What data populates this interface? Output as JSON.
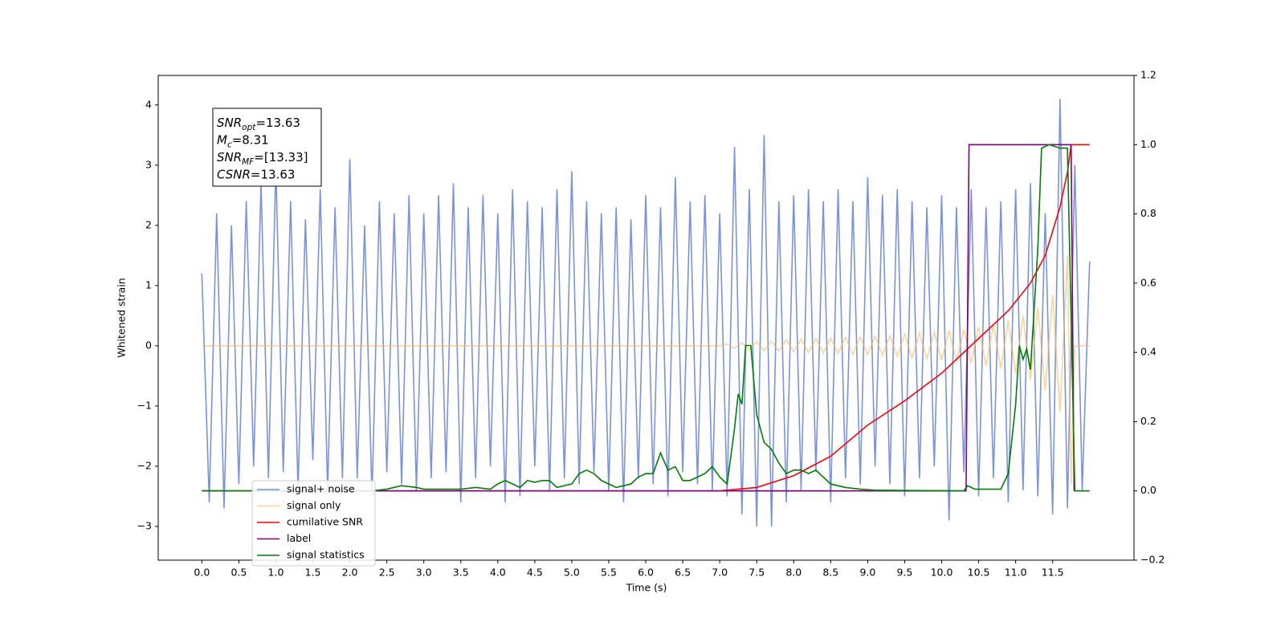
{
  "chart_data": {
    "type": "line",
    "xlabel": "Time (s)",
    "ylabel": "Whitened strain",
    "xlim": [
      -0.59,
      12.6
    ],
    "ylim": [
      -3.56,
      4.49
    ],
    "y2lim": [
      -0.2,
      1.2
    ],
    "xticks": [
      {
        "value": 0,
        "label": "0.0"
      },
      0.5,
      {
        "value": 1,
        "label": "1.0"
      },
      1.5,
      {
        "value": 2,
        "label": "2.0"
      },
      2.5,
      {
        "value": 3,
        "label": "3.0"
      },
      3.5,
      {
        "value": 4,
        "label": "4.0"
      },
      4.5,
      {
        "value": 5,
        "label": "5.0"
      },
      5.5,
      {
        "value": 6,
        "label": "6.0"
      },
      6.5,
      {
        "value": 7,
        "label": "7.0"
      },
      7.5,
      {
        "value": 8,
        "label": "8.0"
      },
      8.5,
      {
        "value": 9,
        "label": "9.0"
      },
      9.5,
      {
        "value": 10,
        "label": "10.0"
      },
      10.5,
      {
        "value": 11,
        "label": "11.0"
      },
      11.5
    ],
    "yticks": [
      {
        "value": -3,
        "label": "−3"
      },
      {
        "value": -2,
        "label": "−2"
      },
      {
        "value": -1,
        "label": "−1"
      },
      0,
      1,
      2,
      3,
      4
    ],
    "y2ticks": [
      {
        "value": -0.2,
        "label": "−0.2"
      },
      {
        "value": 0,
        "label": "0.0"
      },
      0.2,
      0.4,
      0.6,
      0.8,
      {
        "value": 1,
        "label": "1.0"
      },
      1.2
    ],
    "annotation": [
      {
        "text": "SNR",
        "sub": "opt",
        "value": "=13.63"
      },
      {
        "text": "M",
        "sub": "c",
        "value": "=8.31"
      },
      {
        "text": "SNR",
        "sub": "MF",
        "value": "=[13.33]"
      },
      {
        "text": "CSNR",
        "value": "=13.63"
      }
    ],
    "series": [
      {
        "name": "signal+ noise",
        "color": "#7893e6",
        "x": [
          0,
          0.1,
          0.2,
          0.3,
          0.4,
          0.5,
          0.6,
          0.7,
          0.8,
          0.9,
          1,
          1.1,
          1.2,
          1.3,
          1.4,
          1.5,
          1.6,
          1.7,
          1.8,
          1.9,
          2,
          2.1,
          2.2,
          2.3,
          2.4,
          2.5,
          2.6,
          2.7,
          2.8,
          2.9,
          3,
          3.1,
          3.2,
          3.3,
          3.4,
          3.5,
          3.6,
          3.7,
          3.8,
          3.9,
          4,
          4.1,
          4.2,
          4.3,
          4.4,
          4.5,
          4.6,
          4.7,
          4.8,
          4.9,
          5,
          5.1,
          5.2,
          5.3,
          5.4,
          5.5,
          5.6,
          5.7,
          5.8,
          5.9,
          6,
          6.1,
          6.2,
          6.3,
          6.4,
          6.5,
          6.6,
          6.7,
          6.8,
          6.9,
          7,
          7.1,
          7.2,
          7.3,
          7.4,
          7.5,
          7.6,
          7.7,
          7.8,
          7.9,
          8,
          8.1,
          8.2,
          8.3,
          8.4,
          8.5,
          8.6,
          8.7,
          8.8,
          8.9,
          9,
          9.1,
          9.2,
          9.3,
          9.4,
          9.5,
          9.6,
          9.7,
          9.8,
          9.9,
          10,
          10.1,
          10.2,
          10.3,
          10.4,
          10.5,
          10.6,
          10.7,
          10.8,
          10.9,
          11,
          11.1,
          11.2,
          11.3,
          11.4,
          11.5,
          11.6,
          11.7,
          11.8,
          11.9,
          12
        ],
        "values": [
          1.2,
          -2.6,
          2.2,
          -2.7,
          2.0,
          -2.3,
          2.4,
          -2.0,
          2.7,
          -2.2,
          3.0,
          -2.1,
          2.4,
          -2.4,
          2.1,
          -1.9,
          2.6,
          -2.4,
          2.3,
          -2.2,
          3.1,
          -2.2,
          2.0,
          -2.5,
          2.4,
          -2.1,
          2.2,
          -2.3,
          2.5,
          -2.4,
          2.2,
          -2.2,
          2.5,
          -2.1,
          2.7,
          -2.6,
          2.3,
          -2.2,
          2.5,
          -2.0,
          2.2,
          -2.6,
          2.6,
          -2.5,
          2.4,
          -2.0,
          2.3,
          -2.4,
          2.6,
          -2.2,
          2.9,
          -2.3,
          2.4,
          -2.1,
          2.2,
          -2.4,
          2.3,
          -2.6,
          2.1,
          -2.2,
          2.5,
          -2.3,
          2.3,
          -2.5,
          2.8,
          -2.1,
          2.4,
          -2.3,
          2.5,
          -2.4,
          2.2,
          -2.5,
          3.3,
          -2.8,
          2.6,
          -3.0,
          3.5,
          -3.0,
          2.4,
          -2.6,
          2.5,
          -2.4,
          2.6,
          -2.1,
          2.4,
          -2.6,
          2.6,
          -2.2,
          2.4,
          -2.3,
          2.8,
          -2.0,
          2.5,
          -2.3,
          2.6,
          -2.5,
          2.4,
          -2.2,
          2.3,
          -2.0,
          2.5,
          -2.9,
          2.3,
          -2.1,
          2.6,
          -2.5,
          2.3,
          -2.2,
          2.4,
          -2.6,
          2.6,
          -2.4,
          2.7,
          -2.5,
          2.2,
          -2.8,
          4.1,
          -2.7,
          3.0,
          -2.4,
          1.4
        ]
      },
      {
        "name": "signal only",
        "color": "#ffb84d",
        "alpha": 0.6,
        "x": [
          0,
          7,
          7.1,
          7.2,
          7.3,
          7.4,
          7.5,
          7.6,
          7.7,
          7.8,
          7.9,
          8,
          8.1,
          8.2,
          8.3,
          8.4,
          8.5,
          8.6,
          8.7,
          8.8,
          8.9,
          9,
          9.1,
          9.2,
          9.3,
          9.4,
          9.5,
          9.6,
          9.7,
          9.8,
          9.9,
          10,
          10.1,
          10.2,
          10.3,
          10.4,
          10.5,
          10.6,
          10.7,
          10.8,
          10.9,
          11,
          11.1,
          11.2,
          11.3,
          11.4,
          11.5,
          11.6,
          11.7,
          11.75,
          11.8,
          12
        ],
        "values": [
          0,
          0,
          0.03,
          -0.04,
          0.05,
          -0.06,
          0.07,
          -0.08,
          0.08,
          -0.09,
          0.1,
          -0.1,
          0.11,
          -0.11,
          0.12,
          -0.12,
          0.13,
          -0.13,
          0.14,
          -0.14,
          0.15,
          -0.15,
          0.16,
          -0.16,
          0.17,
          -0.18,
          0.19,
          -0.2,
          0.21,
          -0.22,
          0.23,
          -0.24,
          0.25,
          -0.26,
          0.27,
          -0.29,
          0.31,
          -0.33,
          0.35,
          -0.38,
          0.42,
          -0.46,
          0.5,
          -0.56,
          0.64,
          -0.74,
          0.85,
          -1.1,
          1.5,
          -2.3,
          0,
          0
        ]
      },
      {
        "name": "cumilative SNR",
        "color": "#ff0000",
        "axis": "y2",
        "x": [
          0,
          7,
          7.5,
          8,
          8.5,
          9,
          9.5,
          10,
          10.3,
          10.6,
          10.9,
          11.2,
          11.4,
          11.6,
          11.7,
          11.75,
          12
        ],
        "values": [
          0,
          0,
          0.01,
          0.044,
          0.1,
          0.19,
          0.26,
          0.34,
          0.4,
          0.46,
          0.52,
          0.6,
          0.68,
          0.82,
          0.92,
          1.0,
          1.0
        ]
      },
      {
        "name": "label",
        "color": "#800080",
        "axis": "y2",
        "x": [
          0,
          10.33,
          10.37,
          11.75,
          11.79
        ],
        "values": [
          0,
          0,
          1,
          1,
          0
        ]
      },
      {
        "name": "signal statistics",
        "color": "#008000",
        "axis": "y2",
        "x": [
          0,
          2.3,
          2.5,
          2.7,
          2.9,
          3.0,
          3.5,
          3.7,
          3.9,
          4.0,
          4.1,
          4.2,
          4.3,
          4.4,
          4.5,
          4.6,
          4.7,
          4.8,
          5.0,
          5.1,
          5.2,
          5.3,
          5.4,
          5.6,
          5.8,
          5.9,
          6.0,
          6.1,
          6.2,
          6.3,
          6.4,
          6.5,
          6.6,
          6.8,
          6.9,
          7.0,
          7.1,
          7.2,
          7.25,
          7.3,
          7.35,
          7.42,
          7.5,
          7.6,
          7.7,
          7.8,
          7.9,
          8.0,
          8.1,
          8.2,
          8.3,
          8.4,
          8.5,
          8.7,
          8.9,
          9.1,
          10.3,
          10.35,
          10.45,
          10.8,
          10.9,
          11.0,
          11.05,
          11.1,
          11.15,
          11.2,
          11.3,
          11.35,
          11.45,
          11.6,
          11.7,
          11.75,
          11.8,
          12.0
        ],
        "values": [
          0,
          0,
          0.005,
          0.015,
          0.01,
          0.005,
          0.005,
          0.01,
          0.005,
          0.02,
          0.03,
          0.02,
          0.01,
          0.03,
          0.025,
          0.03,
          0.03,
          0.01,
          0.02,
          0.05,
          0.06,
          0.05,
          0.03,
          0.01,
          0.02,
          0.04,
          0.05,
          0.05,
          0.11,
          0.06,
          0.07,
          0.03,
          0.03,
          0.05,
          0.07,
          0.04,
          0.02,
          0.18,
          0.28,
          0.25,
          0.42,
          0.42,
          0.22,
          0.14,
          0.12,
          0.08,
          0.05,
          0.06,
          0.06,
          0.05,
          0.06,
          0.04,
          0.02,
          0.01,
          0.005,
          0.002,
          0,
          0.015,
          0.005,
          0.005,
          0.05,
          0.25,
          0.42,
          0.38,
          0.41,
          0.35,
          0.7,
          0.99,
          1.0,
          0.99,
          0.99,
          0.5,
          0,
          0
        ]
      }
    ]
  }
}
